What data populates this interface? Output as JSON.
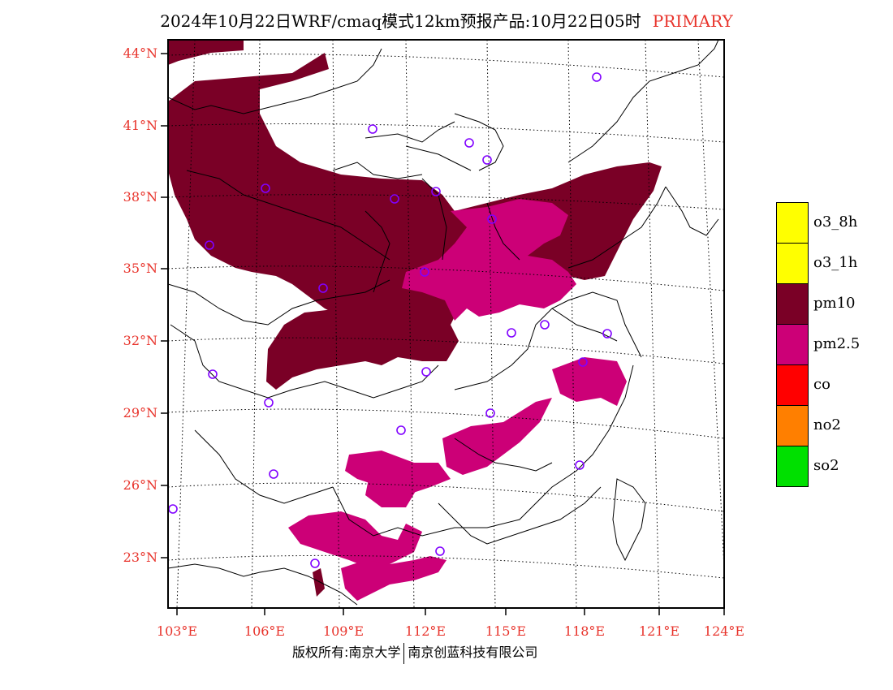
{
  "title": {
    "main": "2024年10月22日WRF/cmaq模式12km预报产品:10月22日05时",
    "tag": "PRIMARY"
  },
  "lat_labels": [
    "44°N",
    "41°N",
    "38°N",
    "35°N",
    "32°N",
    "29°N",
    "26°N",
    "23°N"
  ],
  "lon_labels": [
    "103°E",
    "106°E",
    "109°E",
    "112°E",
    "115°E",
    "118°E",
    "121°E",
    "124°E"
  ],
  "legend": [
    {
      "label": "o3_8h",
      "color": "#ffff00"
    },
    {
      "label": "o3_1h",
      "color": "#ffff00"
    },
    {
      "label": "pm10",
      "color": "#7a0026"
    },
    {
      "label": "pm2.5",
      "color": "#cc0077"
    },
    {
      "label": "co",
      "color": "#ff0000"
    },
    {
      "label": "no2",
      "color": "#ff7f00"
    },
    {
      "label": "so2",
      "color": "#00e000"
    }
  ],
  "footer": {
    "left": "版权所有:南京大学",
    "right": "南京创蓝科技有限公司"
  },
  "colors": {
    "pm10": "#7a0026",
    "pm25": "#cc0077",
    "station": "#8000ff",
    "axis_label": "#e8332b"
  }
}
